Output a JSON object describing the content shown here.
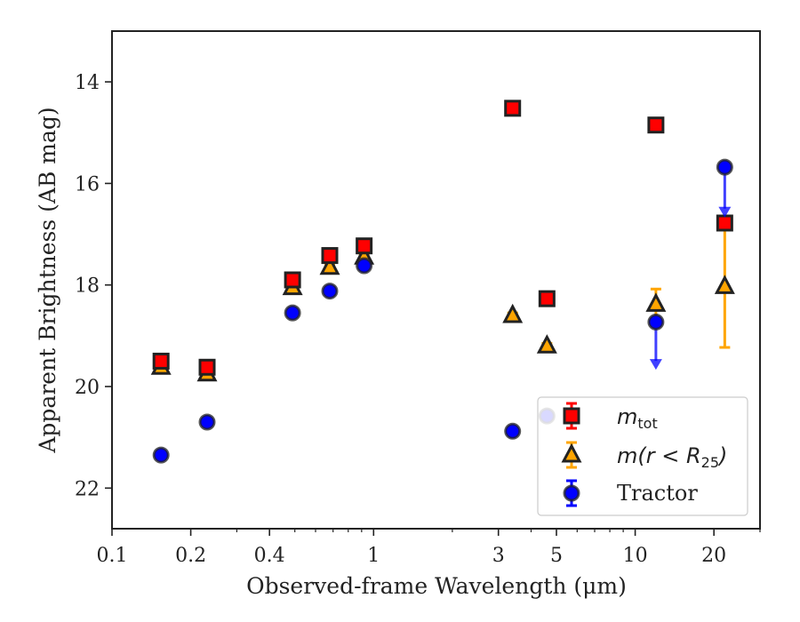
{
  "chart_data": {
    "type": "scatter",
    "xlabel": "Observed-frame Wavelength (μm)",
    "ylabel": "Apparent Brightness (AB mag)",
    "x_scale": "log",
    "xlim": [
      0.1,
      30
    ],
    "ylim": [
      22.8,
      13.0
    ],
    "y_inverted": true,
    "x_ticks": [
      0.1,
      0.2,
      0.4,
      1,
      3,
      5,
      10,
      20
    ],
    "x_tick_labels": [
      "0.1",
      "0.2",
      "0.4",
      "1",
      "3",
      "5",
      "10",
      "20"
    ],
    "y_ticks": [
      14,
      16,
      18,
      20,
      22
    ],
    "y_tick_labels": [
      "14",
      "16",
      "18",
      "20",
      "22"
    ],
    "legend_position": "lower-right",
    "series": [
      {
        "name": "m_tot",
        "marker": "square",
        "color": "#ff0000",
        "edge_color": "#222222",
        "x": [
          0.154,
          0.231,
          0.49,
          0.68,
          0.92,
          3.4,
          4.6,
          12.0,
          22.0
        ],
        "y": [
          19.5,
          19.62,
          17.9,
          17.42,
          17.23,
          14.52,
          18.27,
          14.85,
          16.78
        ],
        "err": [
          0.05,
          0.05,
          0.05,
          0.05,
          0.05,
          0.05,
          0.05,
          0.05,
          0.05
        ]
      },
      {
        "name": "m(r<R25)",
        "marker": "triangle",
        "color": "#ffa500",
        "edge_color": "#222222",
        "x": [
          0.154,
          0.231,
          0.49,
          0.68,
          0.92,
          3.4,
          4.6,
          12.0,
          22.0
        ],
        "y": [
          19.62,
          19.75,
          18.05,
          17.65,
          17.45,
          18.6,
          19.2,
          18.38,
          18.03
        ],
        "err": [
          0.05,
          0.05,
          0.05,
          0.05,
          0.05,
          0.05,
          0.05,
          0.3,
          1.2
        ]
      },
      {
        "name": "Tractor",
        "marker": "circle",
        "color": "#0000ff",
        "edge_color": "#222222",
        "x": [
          0.154,
          0.231,
          0.49,
          0.68,
          0.92,
          3.4,
          4.6,
          12.0,
          22.0
        ],
        "y": [
          21.35,
          20.7,
          18.55,
          18.12,
          17.62,
          20.88,
          20.58,
          18.73,
          15.68
        ],
        "err": [
          0.05,
          0.05,
          0.05,
          0.05,
          0.05,
          0.05,
          0.05,
          0,
          0
        ],
        "upper_limits": [
          false,
          false,
          false,
          false,
          false,
          false,
          false,
          true,
          true
        ],
        "limit_arrow_to": [
          null,
          null,
          null,
          null,
          null,
          null,
          null,
          19.6,
          16.6
        ]
      }
    ]
  }
}
